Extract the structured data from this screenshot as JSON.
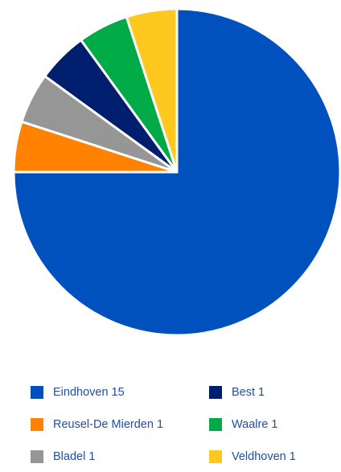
{
  "chart_data": {
    "type": "pie",
    "title": "",
    "slices": [
      {
        "label": "Eindhoven",
        "value": 15,
        "color": "#0050be"
      },
      {
        "label": "Reusel-De Mierden",
        "value": 1,
        "color": "#ff8200"
      },
      {
        "label": "Bladel",
        "value": 1,
        "color": "#969696"
      },
      {
        "label": "Best",
        "value": 1,
        "color": "#001e6e"
      },
      {
        "label": "Waalre",
        "value": 1,
        "color": "#00aa46"
      },
      {
        "label": "Veldhoven",
        "value": 1,
        "color": "#ffc81e"
      }
    ],
    "legend": {
      "placement": "bottom",
      "columns": 2,
      "entries": [
        {
          "text": "Eindhoven 15",
          "color": "#0050be"
        },
        {
          "text": "Best 1",
          "color": "#001e6e"
        },
        {
          "text": "Reusel-De Mierden 1",
          "color": "#ff8200"
        },
        {
          "text": "Waalre 1",
          "color": "#00aa46"
        },
        {
          "text": "Bladel 1",
          "color": "#969696"
        },
        {
          "text": "Veldhoven 1",
          "color": "#ffc81e"
        }
      ]
    }
  }
}
